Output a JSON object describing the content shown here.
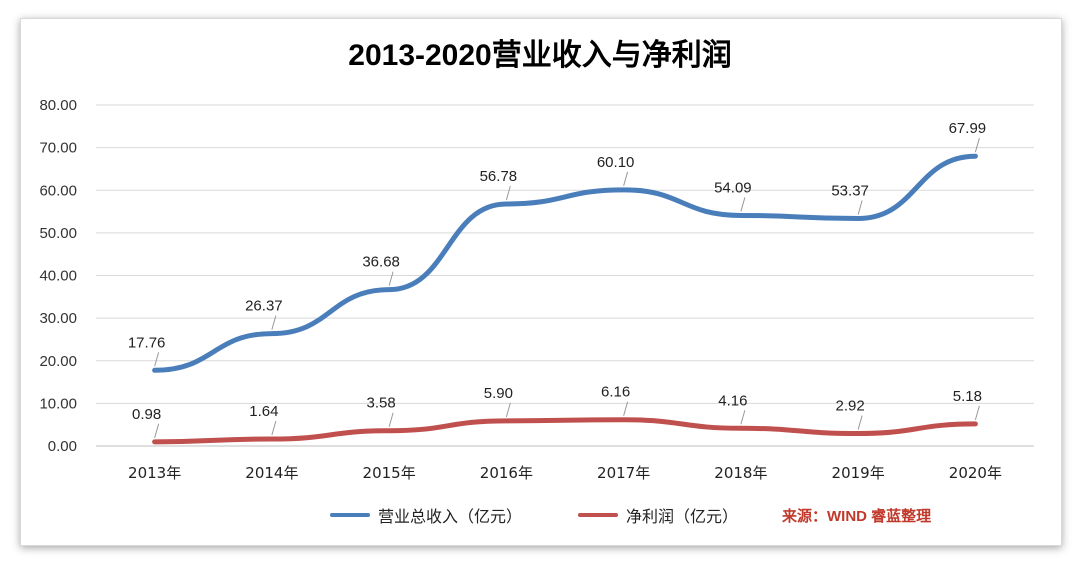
{
  "chart_data": {
    "type": "line",
    "title": "2013-2020营业收入与净利润",
    "categories": [
      "2013年",
      "2014年",
      "2015年",
      "2016年",
      "2017年",
      "2018年",
      "2019年",
      "2020年"
    ],
    "ylim": [
      0,
      80
    ],
    "yticks": [
      "0.00",
      "10.00",
      "20.00",
      "30.00",
      "40.00",
      "50.00",
      "60.00",
      "70.00",
      "80.00"
    ],
    "grid": true,
    "legend_position": "bottom",
    "series": [
      {
        "name": "营业总收入（亿元）",
        "color": "#4a7ebb",
        "values": [
          17.76,
          26.37,
          36.68,
          56.78,
          60.1,
          54.09,
          53.37,
          67.99
        ],
        "labels": [
          "17.76",
          "26.37",
          "36.68",
          "56.78",
          "60.10",
          "54.09",
          "53.37",
          "67.99"
        ]
      },
      {
        "name": "净利润（亿元）",
        "color": "#c0504d",
        "values": [
          0.98,
          1.64,
          3.58,
          5.9,
          6.16,
          4.16,
          2.92,
          5.18
        ],
        "labels": [
          "0.98",
          "1.64",
          "3.58",
          "5.90",
          "6.16",
          "4.16",
          "2.92",
          "5.18"
        ]
      }
    ]
  },
  "source_note": "来源：WIND  睿蓝整理",
  "colors": {
    "source_text": "#c0392b",
    "grid": "#d9d9d9"
  }
}
